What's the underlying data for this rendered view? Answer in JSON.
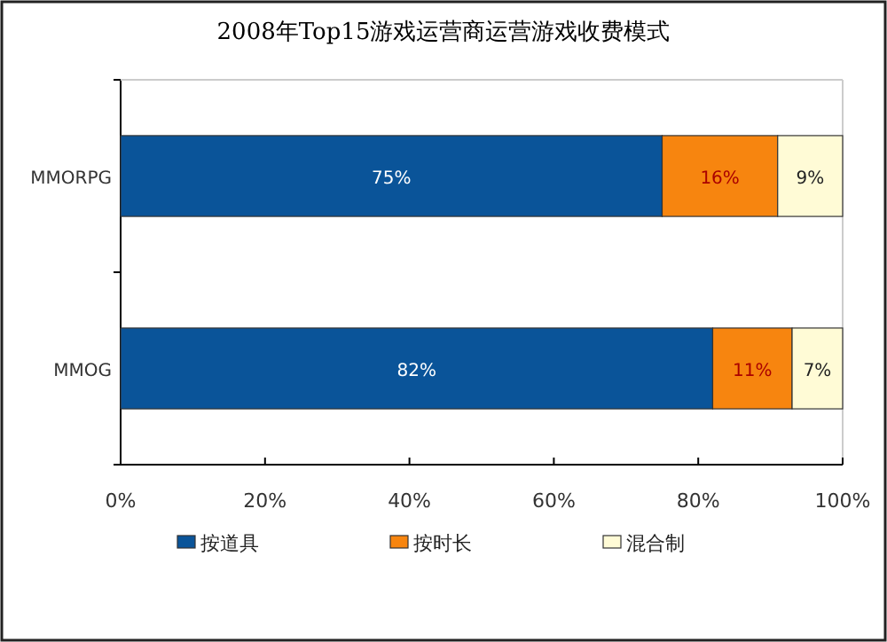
{
  "chart_data": {
    "type": "bar",
    "orientation": "horizontal",
    "stacked": true,
    "title": "2008年Top15游戏运营商运营游戏收费模式",
    "categories": [
      "MMORPG",
      "MMOG"
    ],
    "series": [
      {
        "name": "按道具",
        "color": "#0a5499",
        "values": [
          75,
          82
        ],
        "value_labels": [
          "75%",
          "82%"
        ]
      },
      {
        "name": "按时长",
        "color": "#f7850f",
        "values": [
          16,
          11
        ],
        "value_labels": [
          "16%",
          "11%"
        ]
      },
      {
        "name": "混合制",
        "color": "#fffbd6",
        "values": [
          9,
          7
        ],
        "value_labels": [
          "9%",
          "7%"
        ]
      }
    ],
    "xlim": [
      0,
      100
    ],
    "xticks": [
      {
        "value": 0,
        "label": "0%"
      },
      {
        "value": 20,
        "label": "20%"
      },
      {
        "value": 40,
        "label": "40%"
      },
      {
        "value": 60,
        "label": "60%"
      },
      {
        "value": 80,
        "label": "80%"
      },
      {
        "value": 100,
        "label": "100%"
      }
    ],
    "legend": "bottom",
    "grid": false
  }
}
